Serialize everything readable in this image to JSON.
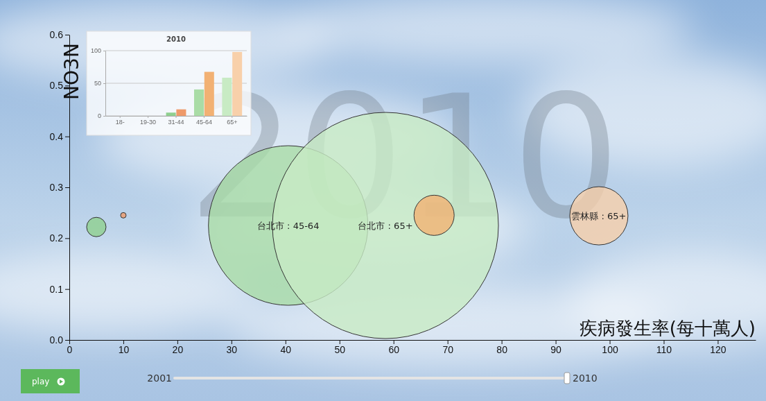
{
  "chart_data": [
    {
      "type": "bubble",
      "title": "2010",
      "x_label": "疾病發生率(每十萬人)",
      "y_label": "NO3N",
      "xlim": [
        0,
        127
      ],
      "xticks": [
        0,
        10,
        20,
        30,
        40,
        50,
        60,
        70,
        80,
        90,
        100,
        110,
        120
      ],
      "ylim": [
        0,
        0.6
      ],
      "yticks": [
        {
          "value": 0,
          "label": "0.0"
        },
        0.1,
        0.2,
        0.3,
        0.4,
        0.5,
        0.6
      ],
      "grid": false,
      "series": [
        {
          "x": [
            5,
            10,
            40.5,
            58.5,
            67.5,
            98
          ],
          "values": [
            0.222,
            0.245,
            0.225,
            0.225,
            0.245,
            0.244
          ],
          "sizes": [
            196,
            16,
            13225,
            26569,
            841,
            1764
          ],
          "labels": [
            null,
            null,
            "台北市 : 45-64",
            "台北市 : 65+",
            null,
            "雲林縣 : 65+"
          ],
          "colors": [
            "#8fcf8f",
            "#ee9a6a",
            "#a9dca6",
            "#c8ebc4",
            "#f2b173",
            "#f8d0aa"
          ]
        }
      ]
    },
    {
      "type": "bar",
      "title": "2010",
      "categories": [
        "18-",
        "19-30",
        "31-44",
        "45-64",
        "65+"
      ],
      "ylim": [
        0,
        100
      ],
      "yticks": [
        0,
        50,
        100
      ],
      "grid": true,
      "series": [
        {
          "values": [
            0,
            0,
            5,
            40.5,
            58.5
          ],
          "colors": [
            "#8fcf8f",
            "#8fcf8f",
            "#8fcf8f",
            "#a9dca6",
            "#c8ebc4"
          ]
        },
        {
          "values": [
            0,
            0,
            10,
            67.5,
            98
          ],
          "colors": [
            "#ee9a6a",
            "#ee9a6a",
            "#ee9a6a",
            "#f2b173",
            "#f8d0aa"
          ]
        }
      ]
    }
  ],
  "controls": {
    "play_label": "play",
    "year_min": 2001,
    "year_max": 2010,
    "year": 2010
  }
}
